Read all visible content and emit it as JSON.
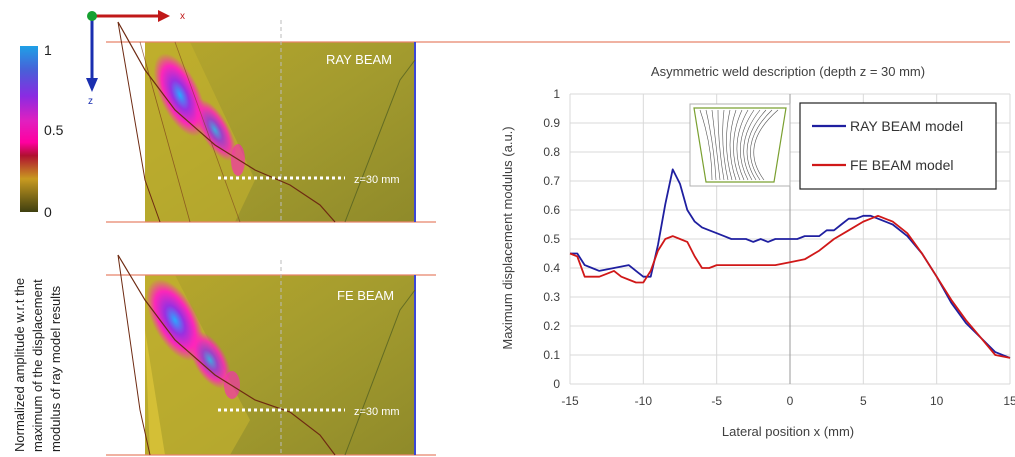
{
  "left": {
    "axis_x_label": "x",
    "axis_z_label": "z",
    "colorbar": {
      "ticks": [
        "1",
        "0.5",
        "0"
      ],
      "label_lines": [
        "Normalized amplitude w.r.t the",
        "maximum of the displacement",
        "modulus of ray model results"
      ],
      "colors": [
        "#1ea0e6",
        "#8a2be2",
        "#e020c0",
        "#ff00a0",
        "#b01030",
        "#c89a20",
        "#3f3f10"
      ]
    },
    "panels": [
      {
        "title": "RAY BEAM",
        "depth_label": "z=30 mm"
      },
      {
        "title": "FE BEAM",
        "depth_label": "z=30 mm"
      }
    ],
    "colors": {
      "field": "#a39b2e",
      "field_light": "#c7b42e",
      "border_top": "#e8836a",
      "border_right": "#3b47d6",
      "ray": "#6e2a12"
    }
  },
  "chart_data": {
    "type": "line",
    "title": "Asymmetric weld description (depth z = 30 mm)",
    "xlabel": "Lateral position x (mm)",
    "ylabel": "Maximum displacement modulus (a.u.)",
    "xlim": [
      -15,
      15
    ],
    "ylim": [
      0,
      1
    ],
    "xticks": [
      -15,
      -10,
      -5,
      0,
      5,
      10,
      15
    ],
    "yticks": [
      0,
      0.1,
      0.2,
      0.3,
      0.4,
      0.5,
      0.6,
      0.7,
      0.8,
      0.9,
      1
    ],
    "grid": true,
    "legend": "top-right",
    "series": [
      {
        "name": "RAY BEAM model",
        "color": "#1f1fa0",
        "x": [
          -15,
          -14.5,
          -14,
          -13.5,
          -13,
          -12,
          -11,
          -10.5,
          -10,
          -9.5,
          -9,
          -8.5,
          -8,
          -7.5,
          -7,
          -6.5,
          -6,
          -5.5,
          -5,
          -4.5,
          -4,
          -3.5,
          -3,
          -2.5,
          -2,
          -1.5,
          -1,
          -0.5,
          0,
          0.5,
          1,
          1.5,
          2,
          2.5,
          3,
          3.5,
          4,
          4.5,
          5,
          5.5,
          6,
          7,
          8,
          9,
          10,
          11,
          12,
          13,
          14,
          15
        ],
        "y": [
          0.45,
          0.45,
          0.41,
          0.4,
          0.39,
          0.4,
          0.41,
          0.39,
          0.37,
          0.37,
          0.48,
          0.62,
          0.74,
          0.69,
          0.6,
          0.56,
          0.54,
          0.53,
          0.52,
          0.51,
          0.5,
          0.5,
          0.5,
          0.49,
          0.5,
          0.49,
          0.5,
          0.5,
          0.5,
          0.5,
          0.51,
          0.51,
          0.51,
          0.53,
          0.53,
          0.55,
          0.57,
          0.57,
          0.58,
          0.58,
          0.57,
          0.55,
          0.51,
          0.45,
          0.37,
          0.28,
          0.21,
          0.16,
          0.11,
          0.09
        ]
      },
      {
        "name": "FE BEAM model",
        "color": "#d01818",
        "x": [
          -15,
          -14.5,
          -14,
          -13.5,
          -13,
          -12.5,
          -12,
          -11.5,
          -11,
          -10.5,
          -10,
          -9.5,
          -9,
          -8.5,
          -8,
          -7.5,
          -7,
          -6.5,
          -6,
          -5.5,
          -5,
          -4,
          -3,
          -2,
          -1,
          0,
          1,
          2,
          3,
          4,
          5,
          5.5,
          6,
          7,
          8,
          9,
          10,
          11,
          12,
          13,
          14,
          15
        ],
        "y": [
          0.45,
          0.44,
          0.37,
          0.37,
          0.37,
          0.38,
          0.39,
          0.37,
          0.36,
          0.35,
          0.35,
          0.39,
          0.46,
          0.5,
          0.51,
          0.5,
          0.49,
          0.44,
          0.4,
          0.4,
          0.41,
          0.41,
          0.41,
          0.41,
          0.41,
          0.42,
          0.43,
          0.46,
          0.5,
          0.53,
          0.56,
          0.57,
          0.58,
          0.56,
          0.52,
          0.45,
          0.37,
          0.29,
          0.22,
          0.16,
          0.1,
          0.09
        ]
      }
    ]
  }
}
